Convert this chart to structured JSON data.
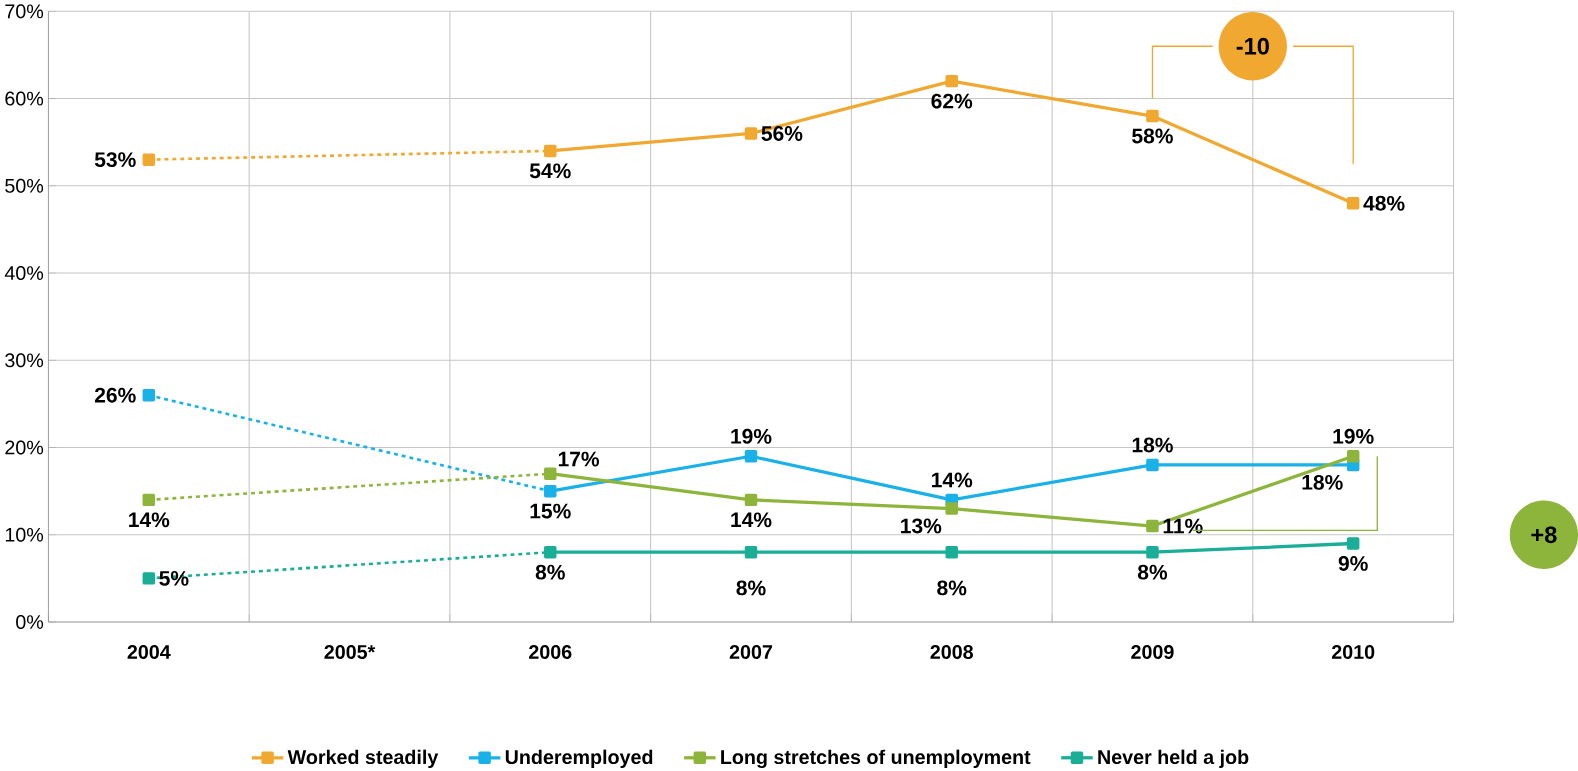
{
  "chart_data": {
    "type": "line",
    "categories": [
      "2004",
      "2005*",
      "2006",
      "2007",
      "2008",
      "2009",
      "2010"
    ],
    "series": [
      {
        "name": "Worked steadily",
        "color": "#f0a830",
        "values": [
          53,
          null,
          54,
          56,
          62,
          58,
          48
        ],
        "value_labels": [
          "53%",
          null,
          "54%",
          "56%",
          "62%",
          "58%",
          "48%"
        ]
      },
      {
        "name": "Underemployed",
        "color": "#1ab0e8",
        "values": [
          26,
          null,
          15,
          19,
          14,
          18,
          18
        ],
        "value_labels": [
          "26%",
          null,
          "15%",
          "19%",
          "14%",
          "18%",
          "18%"
        ]
      },
      {
        "name": "Long stretches of unemployment",
        "color": "#8db53c",
        "values": [
          14,
          null,
          17,
          14,
          13,
          11,
          19
        ],
        "value_labels": [
          "14%",
          null,
          "17%",
          "14%",
          "13%",
          "11%",
          "19%"
        ]
      },
      {
        "name": "Never held a job",
        "color": "#1aae96",
        "values": [
          5,
          null,
          8,
          8,
          8,
          8,
          9
        ],
        "value_labels": [
          "5%",
          null,
          "8%",
          "8%",
          "8%",
          "8%",
          "9%"
        ]
      }
    ],
    "ylim": [
      0,
      70
    ],
    "yticks": [
      {
        "value": 0,
        "label": "0%"
      },
      {
        "value": 10,
        "label": "10%"
      },
      {
        "value": 20,
        "label": "20%"
      },
      {
        "value": 30,
        "label": "30%"
      },
      {
        "value": 40,
        "label": "40%"
      },
      {
        "value": 50,
        "label": "50%"
      },
      {
        "value": 60,
        "label": "60%"
      },
      {
        "value": 70,
        "label": "70%"
      }
    ],
    "annotations": [
      "-10",
      "+8"
    ],
    "grid": true,
    "legend": "bottom",
    "marker": "square"
  }
}
